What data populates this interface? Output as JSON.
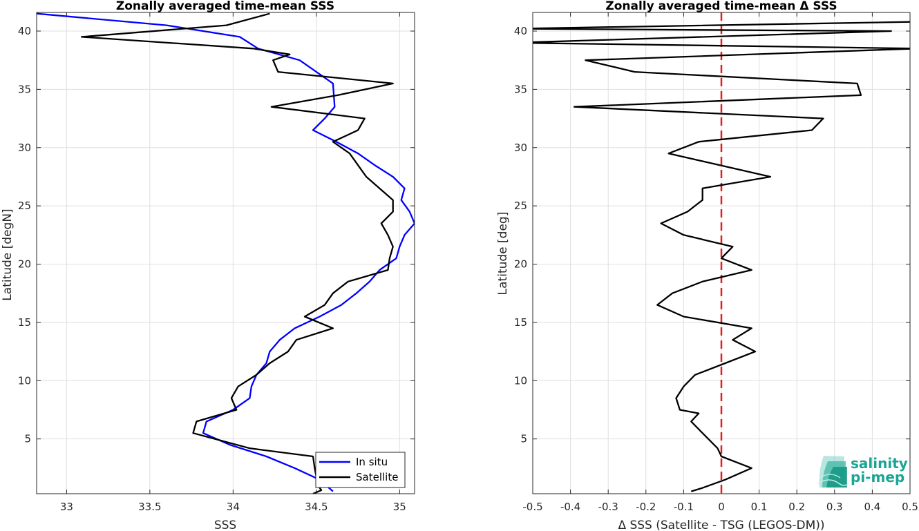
{
  "chart_data": [
    {
      "type": "line",
      "title": "Zonally averaged time-mean SSS",
      "xlabel": "SSS",
      "ylabel": "Latitude [degN]",
      "xlim": [
        32.82,
        35.09
      ],
      "ylim": [
        0.3,
        41.6
      ],
      "xticks": [
        33,
        33.5,
        34,
        34.5,
        35
      ],
      "xtick_labels": [
        "33",
        "33.5",
        "34",
        "34.5",
        "35"
      ],
      "yticks": [
        5,
        10,
        15,
        20,
        25,
        30,
        35,
        40
      ],
      "ytick_labels": [
        "5",
        "10",
        "15",
        "20",
        "25",
        "30",
        "35",
        "40"
      ],
      "grid": true,
      "legend": {
        "position": "bottom-right",
        "entries": [
          "In situ",
          "Satellite"
        ]
      },
      "series": [
        {
          "name": "In situ",
          "color": "#0000ff",
          "points": [
            [
              34.6,
              0.5
            ],
            [
              34.52,
              1.5
            ],
            [
              34.37,
              2.5
            ],
            [
              34.2,
              3.5
            ],
            [
              33.98,
              4.5
            ],
            [
              33.82,
              5.5
            ],
            [
              33.84,
              6.5
            ],
            [
              34.0,
              7.5
            ],
            [
              34.1,
              8.5
            ],
            [
              34.11,
              9.5
            ],
            [
              34.14,
              10.5
            ],
            [
              34.2,
              11.5
            ],
            [
              34.22,
              12.5
            ],
            [
              34.28,
              13.5
            ],
            [
              34.37,
              14.5
            ],
            [
              34.52,
              15.5
            ],
            [
              34.65,
              16.5
            ],
            [
              34.74,
              17.5
            ],
            [
              34.82,
              18.5
            ],
            [
              34.88,
              19.5
            ],
            [
              34.98,
              20.5
            ],
            [
              35.0,
              21.5
            ],
            [
              35.03,
              22.5
            ],
            [
              35.09,
              23.5
            ],
            [
              35.06,
              24.5
            ],
            [
              35.01,
              25.5
            ],
            [
              35.03,
              26.5
            ],
            [
              34.96,
              27.5
            ],
            [
              34.85,
              28.5
            ],
            [
              34.75,
              29.5
            ],
            [
              34.62,
              30.5
            ],
            [
              34.48,
              31.5
            ],
            [
              34.55,
              32.5
            ],
            [
              34.61,
              33.5
            ],
            [
              34.6,
              35.5
            ],
            [
              34.5,
              36.5
            ],
            [
              34.4,
              37.5
            ],
            [
              34.15,
              38.5
            ],
            [
              34.04,
              39.5
            ],
            [
              33.6,
              40.5
            ],
            [
              32.82,
              41.5
            ]
          ]
        },
        {
          "name": "Satellite",
          "color": "#000000",
          "points": [
            [
              34.48,
              0.3
            ],
            [
              34.53,
              0.6
            ],
            [
              34.51,
              1.0
            ],
            [
              34.49,
              2.5
            ],
            [
              34.48,
              3.5
            ],
            [
              34.1,
              4.2
            ],
            [
              33.76,
              5.5
            ],
            [
              33.78,
              6.5
            ],
            [
              34.02,
              7.5
            ],
            [
              33.99,
              8.5
            ],
            [
              34.03,
              9.5
            ],
            [
              34.14,
              10.5
            ],
            [
              34.22,
              11.5
            ],
            [
              34.33,
              12.5
            ],
            [
              34.38,
              13.5
            ],
            [
              34.6,
              14.5
            ],
            [
              34.43,
              15.5
            ],
            [
              34.55,
              16.5
            ],
            [
              34.6,
              17.5
            ],
            [
              34.69,
              18.5
            ],
            [
              34.93,
              19.5
            ],
            [
              34.94,
              20.5
            ],
            [
              34.96,
              21.5
            ],
            [
              34.93,
              22.5
            ],
            [
              34.89,
              23.5
            ],
            [
              34.96,
              24.5
            ],
            [
              34.96,
              25.5
            ],
            [
              34.8,
              27.5
            ],
            [
              34.7,
              29.5
            ],
            [
              34.6,
              30.5
            ],
            [
              34.75,
              31.5
            ],
            [
              34.79,
              32.5
            ],
            [
              34.23,
              33.5
            ],
            [
              34.63,
              34.5
            ],
            [
              34.96,
              35.5
            ],
            [
              34.27,
              36.5
            ],
            [
              34.24,
              37.5
            ],
            [
              34.34,
              38.0
            ],
            [
              34.12,
              38.5
            ],
            [
              33.09,
              39.5
            ],
            [
              33.96,
              40.5
            ],
            [
              34.22,
              41.5
            ]
          ]
        }
      ]
    },
    {
      "type": "line",
      "title": "Zonally averaged time-mean Δ SSS",
      "xlabel": "Δ SSS (Satellite - TSG (LEGOS-DM))",
      "ylabel": "Latitude [deg]",
      "xlim": [
        -0.5,
        0.5
      ],
      "ylim": [
        0.3,
        41.6
      ],
      "xticks": [
        -0.5,
        -0.4,
        -0.3,
        -0.2,
        -0.1,
        0,
        0.1,
        0.2,
        0.3,
        0.4,
        0.5
      ],
      "xtick_labels": [
        "-0.5",
        "-0.4",
        "-0.3",
        "-0.2",
        "-0.1",
        "0",
        "0.1",
        "0.2",
        "0.3",
        "0.4",
        "0.5"
      ],
      "yticks": [
        5,
        10,
        15,
        20,
        25,
        30,
        35,
        40
      ],
      "ytick_labels": [
        "5",
        "10",
        "15",
        "20",
        "25",
        "30",
        "35",
        "40"
      ],
      "grid": true,
      "reference_line": {
        "x": 0,
        "color": "#e0201f",
        "style": "dashed"
      },
      "series": [
        {
          "color": "#000000",
          "points": [
            [
              -0.08,
              0.5
            ],
            [
              -0.05,
              0.8
            ],
            [
              0.01,
              1.5
            ],
            [
              0.08,
              2.5
            ],
            [
              0.0,
              3.5
            ],
            [
              -0.01,
              4.2
            ],
            [
              -0.05,
              5.5
            ],
            [
              -0.08,
              6.5
            ],
            [
              -0.06,
              7.2
            ],
            [
              -0.11,
              7.5
            ],
            [
              -0.12,
              8.5
            ],
            [
              -0.1,
              9.5
            ],
            [
              -0.07,
              10.5
            ],
            [
              0.01,
              11.5
            ],
            [
              0.09,
              12.5
            ],
            [
              0.03,
              13.5
            ],
            [
              0.08,
              14.5
            ],
            [
              -0.1,
              15.5
            ],
            [
              -0.17,
              16.5
            ],
            [
              -0.13,
              17.5
            ],
            [
              -0.05,
              18.5
            ],
            [
              0.08,
              19.5
            ],
            [
              0.0,
              20.5
            ],
            [
              0.03,
              21.5
            ],
            [
              -0.1,
              22.5
            ],
            [
              -0.16,
              23.5
            ],
            [
              -0.09,
              24.5
            ],
            [
              -0.05,
              25.5
            ],
            [
              -0.05,
              26.5
            ],
            [
              0.13,
              27.5
            ],
            [
              -0.14,
              29.5
            ],
            [
              -0.06,
              30.5
            ],
            [
              0.24,
              31.5
            ],
            [
              0.27,
              32.5
            ],
            [
              -0.39,
              33.5
            ],
            [
              0.37,
              34.5
            ],
            [
              0.36,
              35.5
            ],
            [
              -0.23,
              36.5
            ],
            [
              -0.36,
              37.5
            ],
            [
              0.52,
              38.5
            ],
            [
              -0.55,
              39.0
            ],
            [
              0.45,
              40.0
            ],
            [
              -0.55,
              40.2
            ],
            [
              0.52,
              40.8
            ]
          ]
        }
      ]
    }
  ],
  "logo": {
    "line1": "salinity",
    "line2": "pi-mep"
  }
}
